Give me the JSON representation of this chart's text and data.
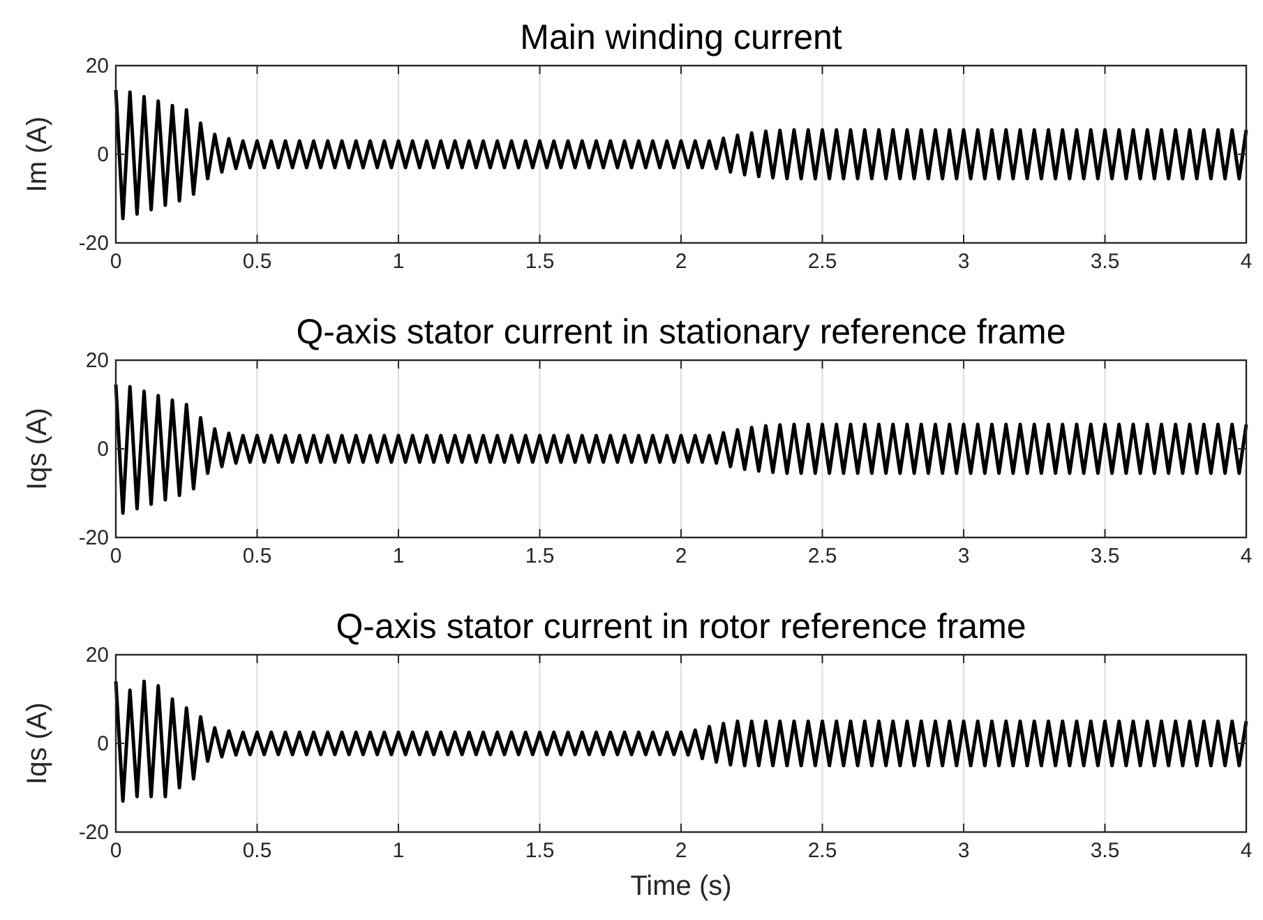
{
  "chart_data": [
    {
      "type": "line",
      "title": "Main winding current",
      "ylabel": "Im (A)",
      "xlim": [
        0,
        4
      ],
      "xticks": [
        0,
        0.5,
        1,
        1.5,
        2,
        2.5,
        3,
        3.5,
        4
      ],
      "ylim": [
        -20,
        20
      ],
      "yticks": [
        -20,
        0,
        20
      ],
      "grid": "x",
      "x": [
        0,
        0.025,
        0.05,
        0.075,
        0.1,
        0.125,
        0.15,
        0.175,
        0.2,
        0.225,
        0.25,
        0.275,
        0.3,
        0.325,
        0.35,
        0.375,
        0.4,
        0.425,
        0.45,
        0.475,
        0.5,
        0.525,
        0.55,
        0.575,
        0.6,
        0.625,
        0.65,
        0.675,
        0.7,
        0.725,
        0.75,
        0.775,
        0.8,
        0.825,
        0.85,
        0.875,
        0.9,
        0.925,
        0.95,
        0.975,
        1,
        1.025,
        1.05,
        1.075,
        1.1,
        1.125,
        1.15,
        1.175,
        1.2,
        1.225,
        1.25,
        1.275,
        1.3,
        1.325,
        1.35,
        1.375,
        1.4,
        1.425,
        1.45,
        1.475,
        1.5,
        1.525,
        1.55,
        1.575,
        1.6,
        1.625,
        1.65,
        1.675,
        1.7,
        1.725,
        1.75,
        1.775,
        1.8,
        1.825,
        1.85,
        1.875,
        1.9,
        1.925,
        1.95,
        1.975,
        2,
        2.025,
        2.05,
        2.075,
        2.1,
        2.125,
        2.15,
        2.175,
        2.2,
        2.225,
        2.25,
        2.275,
        2.3,
        2.325,
        2.35,
        2.375,
        2.4,
        2.425,
        2.45,
        2.475,
        2.5,
        2.525,
        2.55,
        2.575,
        2.6,
        2.625,
        2.65,
        2.675,
        2.7,
        2.725,
        2.75,
        2.775,
        2.8,
        2.825,
        2.85,
        2.875,
        2.9,
        2.925,
        2.95,
        2.975,
        3,
        3.025,
        3.05,
        3.075,
        3.1,
        3.125,
        3.15,
        3.175,
        3.2,
        3.225,
        3.25,
        3.275,
        3.3,
        3.325,
        3.35,
        3.375,
        3.4,
        3.425,
        3.45,
        3.475,
        3.5,
        3.525,
        3.55,
        3.575,
        3.6,
        3.625,
        3.65,
        3.675,
        3.7,
        3.725,
        3.75,
        3.775,
        3.8,
        3.825,
        3.85,
        3.875,
        3.9,
        3.925,
        3.95,
        3.975,
        4
      ],
      "series": [
        {
          "color": "#000000",
          "values": [
            14.5,
            -14.5,
            14,
            -13.5,
            13,
            -12.5,
            12,
            -11.5,
            11,
            -10.5,
            10,
            -9,
            7,
            -5.5,
            4.5,
            -4,
            3.5,
            -3.2,
            3,
            -3,
            3,
            -3,
            3,
            -3,
            3,
            -3,
            3,
            -3,
            3,
            -3,
            3,
            -3,
            3,
            -3,
            3,
            -3,
            3,
            -3,
            3,
            -3,
            3,
            -3,
            3,
            -3,
            3,
            -3,
            3,
            -3,
            3,
            -3,
            3,
            -3,
            3,
            -3,
            3,
            -3,
            3,
            -3,
            3,
            -3,
            3,
            -3,
            3,
            -3,
            3,
            -3,
            3,
            -3,
            3,
            -3,
            3,
            -3,
            3,
            -3,
            3,
            -3,
            3,
            -3,
            3,
            -3,
            3,
            -3,
            3,
            -3,
            3,
            -3.2,
            3.6,
            -4,
            4.3,
            -4.6,
            4.8,
            -5,
            5.2,
            -5.3,
            5.4,
            -5.5,
            5.5,
            -5.5,
            5.5,
            -5.5,
            5.5,
            -5.5,
            5.5,
            -5.5,
            5.5,
            -5.5,
            5.5,
            -5.5,
            5.5,
            -5.5,
            5.5,
            -5.5,
            5.5,
            -5.5,
            5.5,
            -5.5,
            5.5,
            -5.5,
            5.5,
            -5.5,
            5.5,
            -5.5,
            5.5,
            -5.5,
            5.5,
            -5.5,
            5.5,
            -5.5,
            5.5,
            -5.5,
            5.5,
            -5.5,
            5.5,
            -5.5,
            5.5,
            -5.5,
            5.5,
            -5.5,
            5.5,
            -5.5,
            5.5,
            -5.5,
            5.5,
            -5.5,
            5.5,
            -5.5,
            5.5,
            -5.5,
            5.5,
            -5.5,
            5.5,
            -5.5,
            5.5,
            -5.5,
            5.5,
            -5.5,
            5.5,
            -5.5,
            5.5,
            -5.5,
            5.5
          ]
        }
      ]
    },
    {
      "type": "line",
      "title": "Q-axis stator current in stationary reference frame",
      "ylabel": "Iqs (A)",
      "xlim": [
        0,
        4
      ],
      "xticks": [
        0,
        0.5,
        1,
        1.5,
        2,
        2.5,
        3,
        3.5,
        4
      ],
      "ylim": [
        -20,
        20
      ],
      "yticks": [
        -20,
        0,
        20
      ],
      "grid": "x",
      "x": [
        0,
        0.025,
        0.05,
        0.075,
        0.1,
        0.125,
        0.15,
        0.175,
        0.2,
        0.225,
        0.25,
        0.275,
        0.3,
        0.325,
        0.35,
        0.375,
        0.4,
        0.425,
        0.45,
        0.475,
        0.5,
        0.525,
        0.55,
        0.575,
        0.6,
        0.625,
        0.65,
        0.675,
        0.7,
        0.725,
        0.75,
        0.775,
        0.8,
        0.825,
        0.85,
        0.875,
        0.9,
        0.925,
        0.95,
        0.975,
        1,
        1.025,
        1.05,
        1.075,
        1.1,
        1.125,
        1.15,
        1.175,
        1.2,
        1.225,
        1.25,
        1.275,
        1.3,
        1.325,
        1.35,
        1.375,
        1.4,
        1.425,
        1.45,
        1.475,
        1.5,
        1.525,
        1.55,
        1.575,
        1.6,
        1.625,
        1.65,
        1.675,
        1.7,
        1.725,
        1.75,
        1.775,
        1.8,
        1.825,
        1.85,
        1.875,
        1.9,
        1.925,
        1.95,
        1.975,
        2,
        2.025,
        2.05,
        2.075,
        2.1,
        2.125,
        2.15,
        2.175,
        2.2,
        2.225,
        2.25,
        2.275,
        2.3,
        2.325,
        2.35,
        2.375,
        2.4,
        2.425,
        2.45,
        2.475,
        2.5,
        2.525,
        2.55,
        2.575,
        2.6,
        2.625,
        2.65,
        2.675,
        2.7,
        2.725,
        2.75,
        2.775,
        2.8,
        2.825,
        2.85,
        2.875,
        2.9,
        2.925,
        2.95,
        2.975,
        3,
        3.025,
        3.05,
        3.075,
        3.1,
        3.125,
        3.15,
        3.175,
        3.2,
        3.225,
        3.25,
        3.275,
        3.3,
        3.325,
        3.35,
        3.375,
        3.4,
        3.425,
        3.45,
        3.475,
        3.5,
        3.525,
        3.55,
        3.575,
        3.6,
        3.625,
        3.65,
        3.675,
        3.7,
        3.725,
        3.75,
        3.775,
        3.8,
        3.825,
        3.85,
        3.875,
        3.9,
        3.925,
        3.95,
        3.975,
        4
      ],
      "series": [
        {
          "color": "#000000",
          "values": [
            14.5,
            -14.5,
            14,
            -13.5,
            13,
            -12.5,
            12,
            -11.5,
            11,
            -10.5,
            10,
            -9,
            7,
            -5.5,
            4.5,
            -4,
            3.5,
            -3.2,
            3,
            -3,
            3,
            -3,
            3,
            -3,
            3,
            -3,
            3,
            -3,
            3,
            -3,
            3,
            -3,
            3,
            -3,
            3,
            -3,
            3,
            -3,
            3,
            -3,
            3,
            -3,
            3,
            -3,
            3,
            -3,
            3,
            -3,
            3,
            -3,
            3,
            -3,
            3,
            -3,
            3,
            -3,
            3,
            -3,
            3,
            -3,
            3,
            -3,
            3,
            -3,
            3,
            -3,
            3,
            -3,
            3,
            -3,
            3,
            -3,
            3,
            -3,
            3,
            -3,
            3,
            -3,
            3,
            -3,
            3,
            -3,
            3,
            -3,
            3,
            -3.2,
            3.6,
            -4,
            4.3,
            -4.6,
            4.8,
            -5,
            5.2,
            -5.3,
            5.4,
            -5.5,
            5.5,
            -5.5,
            5.5,
            -5.5,
            5.5,
            -5.5,
            5.5,
            -5.5,
            5.5,
            -5.5,
            5.5,
            -5.5,
            5.5,
            -5.5,
            5.5,
            -5.5,
            5.5,
            -5.5,
            5.5,
            -5.5,
            5.5,
            -5.5,
            5.5,
            -5.5,
            5.5,
            -5.5,
            5.5,
            -5.5,
            5.5,
            -5.5,
            5.5,
            -5.5,
            5.5,
            -5.5,
            5.5,
            -5.5,
            5.5,
            -5.5,
            5.5,
            -5.5,
            5.5,
            -5.5,
            5.5,
            -5.5,
            5.5,
            -5.5,
            5.5,
            -5.5,
            5.5,
            -5.5,
            5.5,
            -5.5,
            5.5,
            -5.5,
            5.5,
            -5.5,
            5.5,
            -5.5,
            5.5,
            -5.5,
            5.5,
            -5.5,
            5.5,
            -5.5,
            5.5
          ]
        }
      ]
    },
    {
      "type": "line",
      "title": "Q-axis stator current in rotor reference frame",
      "ylabel": "Iqs (A)",
      "xlabel": "Time (s)",
      "xlim": [
        0,
        4
      ],
      "xticks": [
        0,
        0.5,
        1,
        1.5,
        2,
        2.5,
        3,
        3.5,
        4
      ],
      "ylim": [
        -20,
        20
      ],
      "yticks": [
        -20,
        0,
        20
      ],
      "grid": "x",
      "x": [
        0,
        0.025,
        0.05,
        0.075,
        0.1,
        0.125,
        0.15,
        0.175,
        0.2,
        0.225,
        0.25,
        0.275,
        0.3,
        0.325,
        0.35,
        0.375,
        0.4,
        0.425,
        0.45,
        0.475,
        0.5,
        0.525,
        0.55,
        0.575,
        0.6,
        0.625,
        0.65,
        0.675,
        0.7,
        0.725,
        0.75,
        0.775,
        0.8,
        0.825,
        0.85,
        0.875,
        0.9,
        0.925,
        0.95,
        0.975,
        1,
        1.025,
        1.05,
        1.075,
        1.1,
        1.125,
        1.15,
        1.175,
        1.2,
        1.225,
        1.25,
        1.275,
        1.3,
        1.325,
        1.35,
        1.375,
        1.4,
        1.425,
        1.45,
        1.475,
        1.5,
        1.525,
        1.55,
        1.575,
        1.6,
        1.625,
        1.65,
        1.675,
        1.7,
        1.725,
        1.75,
        1.775,
        1.8,
        1.825,
        1.85,
        1.875,
        1.9,
        1.925,
        1.95,
        1.975,
        2,
        2.025,
        2.05,
        2.075,
        2.1,
        2.125,
        2.15,
        2.175,
        2.2,
        2.225,
        2.25,
        2.275,
        2.3,
        2.325,
        2.35,
        2.375,
        2.4,
        2.425,
        2.45,
        2.475,
        2.5,
        2.525,
        2.55,
        2.575,
        2.6,
        2.625,
        2.65,
        2.675,
        2.7,
        2.725,
        2.75,
        2.775,
        2.8,
        2.825,
        2.85,
        2.875,
        2.9,
        2.925,
        2.95,
        2.975,
        3,
        3.025,
        3.05,
        3.075,
        3.1,
        3.125,
        3.15,
        3.175,
        3.2,
        3.225,
        3.25,
        3.275,
        3.3,
        3.325,
        3.35,
        3.375,
        3.4,
        3.425,
        3.45,
        3.475,
        3.5,
        3.525,
        3.55,
        3.575,
        3.6,
        3.625,
        3.65,
        3.675,
        3.7,
        3.725,
        3.75,
        3.775,
        3.8,
        3.825,
        3.85,
        3.875,
        3.9,
        3.925,
        3.95,
        3.975,
        4
      ],
      "series": [
        {
          "color": "#000000",
          "values": [
            14,
            -13,
            12,
            -12,
            14,
            -12,
            13,
            -12,
            10,
            -10,
            8,
            -8,
            6,
            -4,
            3.5,
            -3,
            2.8,
            -2.6,
            2.5,
            -2.5,
            2.5,
            -2.5,
            2.5,
            -2.5,
            2.5,
            -2.5,
            2.5,
            -2.5,
            2.5,
            -2.5,
            2.5,
            -2.5,
            2.5,
            -2.5,
            2.5,
            -2.5,
            2.5,
            -2.5,
            2.5,
            -2.5,
            2.5,
            -2.5,
            2.5,
            -2.5,
            2.5,
            -2.5,
            2.5,
            -2.5,
            2.5,
            -2.5,
            2.5,
            -2.5,
            2.5,
            -2.5,
            2.5,
            -2.5,
            2.5,
            -2.5,
            2.5,
            -2.5,
            2.5,
            -2.5,
            2.5,
            -2.5,
            2.5,
            -2.5,
            2.5,
            -2.5,
            2.5,
            -2.5,
            2.5,
            -2.5,
            2.5,
            -2.5,
            2.5,
            -2.5,
            2.5,
            -2.5,
            2.5,
            -2.5,
            2.5,
            -2.6,
            3,
            -3.4,
            3.8,
            -4.2,
            4.5,
            -4.8,
            5,
            -5,
            5,
            -5,
            5,
            -5,
            5,
            -5,
            5,
            -5,
            5,
            -5,
            5,
            -5,
            5,
            -5,
            5,
            -5,
            5,
            -5,
            5,
            -5,
            5,
            -5,
            5,
            -5,
            5,
            -5,
            5,
            -5,
            5,
            -5,
            5,
            -5,
            5,
            -5,
            5,
            -5,
            5,
            -5,
            5,
            -5,
            5,
            -5,
            5,
            -5,
            5,
            -5,
            5,
            -5,
            5,
            -5,
            5,
            -5,
            5,
            -5,
            5,
            -5,
            5,
            -5,
            5,
            -5,
            5,
            -5,
            5,
            -5,
            5,
            -5,
            5,
            -5,
            5,
            -5,
            5
          ]
        }
      ]
    }
  ]
}
